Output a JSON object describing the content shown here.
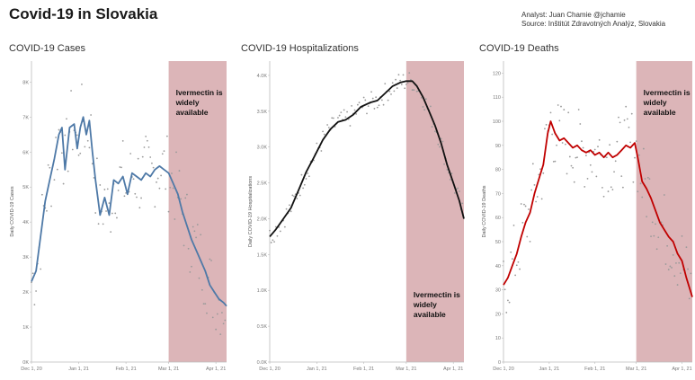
{
  "title": "Covid-19 in Slovakia",
  "credits": {
    "analyst": "Analyst: Juan Chamie @jchamie",
    "source": "Source: Inštitút Zdravotných Analýz, Slovakia"
  },
  "colors": {
    "cases": "#4e79a7",
    "hospitalizations": "#111111",
    "deaths": "#c00000",
    "highlight": "#dcb5b8",
    "points": "#9a9a9a"
  },
  "chart_data": [
    {
      "type": "line",
      "title": "COVID-19 Cases",
      "ylabel": "Daily COVID-19 Cases ",
      "ylim": [
        0,
        8600
      ],
      "y_ticks": [
        0,
        1000,
        2000,
        3000,
        4000,
        5000,
        6000,
        7000,
        8000
      ],
      "y_tick_labels": [
        "0K",
        "1K",
        "2K",
        "3K",
        "4K",
        "5K",
        "6K",
        "7K",
        "8K"
      ],
      "xlim": [
        "2020-12-01",
        "2021-04-08"
      ],
      "x_ticks": [
        "2020-12-01",
        "2021-01-01",
        "2021-02-01",
        "2021-03-01",
        "2021-04-01"
      ],
      "x_tick_labels": [
        "Dec 1, 20",
        "Jan 1, 21",
        "Feb 1, 21",
        "Mar 1, 21",
        "Apr 1, 21"
      ],
      "highlight": {
        "from": "2021-03-01",
        "to": "2021-04-08",
        "label": [
          "Ivermectin is",
          "widely",
          "available"
        ],
        "label_position": "top"
      },
      "series": [
        {
          "values": [
            [
              "2020-12-01",
              2300
            ],
            [
              "2020-12-04",
              2600
            ],
            [
              "2020-12-07",
              3600
            ],
            [
              "2020-12-10",
              4600
            ],
            [
              "2020-12-13",
              5200
            ],
            [
              "2020-12-16",
              5800
            ],
            [
              "2020-12-19",
              6500
            ],
            [
              "2020-12-21",
              6700
            ],
            [
              "2020-12-23",
              5500
            ],
            [
              "2020-12-26",
              6700
            ],
            [
              "2020-12-29",
              6800
            ],
            [
              "2020-12-31",
              6100
            ],
            [
              "2021-01-02",
              6700
            ],
            [
              "2021-01-04",
              7000
            ],
            [
              "2021-01-06",
              6500
            ],
            [
              "2021-01-08",
              6900
            ],
            [
              "2021-01-10",
              6000
            ],
            [
              "2021-01-12",
              5200
            ],
            [
              "2021-01-15",
              4200
            ],
            [
              "2021-01-18",
              4700
            ],
            [
              "2021-01-21",
              4200
            ],
            [
              "2021-01-24",
              5200
            ],
            [
              "2021-01-27",
              5100
            ],
            [
              "2021-01-30",
              5300
            ],
            [
              "2021-02-02",
              4800
            ],
            [
              "2021-02-05",
              5400
            ],
            [
              "2021-02-08",
              5300
            ],
            [
              "2021-02-11",
              5200
            ],
            [
              "2021-02-14",
              5400
            ],
            [
              "2021-02-17",
              5300
            ],
            [
              "2021-02-20",
              5500
            ],
            [
              "2021-02-23",
              5600
            ],
            [
              "2021-02-26",
              5500
            ],
            [
              "2021-03-01",
              5400
            ],
            [
              "2021-03-04",
              5100
            ],
            [
              "2021-03-07",
              4800
            ],
            [
              "2021-03-10",
              4300
            ],
            [
              "2021-03-13",
              3900
            ],
            [
              "2021-03-16",
              3500
            ],
            [
              "2021-03-19",
              3200
            ],
            [
              "2021-03-22",
              2900
            ],
            [
              "2021-03-25",
              2600
            ],
            [
              "2021-03-28",
              2200
            ],
            [
              "2021-03-31",
              2000
            ],
            [
              "2021-04-03",
              1800
            ],
            [
              "2021-04-06",
              1700
            ],
            [
              "2021-04-08",
              1600
            ]
          ]
        }
      ]
    },
    {
      "type": "line",
      "title": "COVID-19 Hospitalizations",
      "ylabel": "Daily COVID-19 Hospitalizations ",
      "ylim": [
        0,
        4200
      ],
      "y_ticks": [
        0,
        500,
        1000,
        1500,
        2000,
        2500,
        3000,
        3500,
        4000
      ],
      "y_tick_labels": [
        "0.0K",
        "0.5K",
        "1.0K",
        "1.5K",
        "2.0K",
        "2.5K",
        "3.0K",
        "3.5K",
        "4.0K"
      ],
      "xlim": [
        "2020-12-01",
        "2021-04-08"
      ],
      "x_ticks": [
        "2020-12-01",
        "2021-01-01",
        "2021-02-01",
        "2021-03-01",
        "2021-04-01"
      ],
      "x_tick_labels": [
        "Dec 1, 20",
        "Jan 1, 21",
        "Feb 1, 21",
        "Mar 1, 21",
        "Apr 1, 21"
      ],
      "highlight": {
        "from": "2021-03-01",
        "to": "2021-04-08",
        "label": [
          "Ivermectin is",
          "widely",
          "available"
        ],
        "label_position": "bottom"
      },
      "series": [
        {
          "values": [
            [
              "2020-12-01",
              1750
            ],
            [
              "2020-12-05",
              1850
            ],
            [
              "2020-12-10",
              2000
            ],
            [
              "2020-12-15",
              2150
            ],
            [
              "2020-12-20",
              2400
            ],
            [
              "2020-12-25",
              2650
            ],
            [
              "2020-12-30",
              2850
            ],
            [
              "2021-01-05",
              3100
            ],
            [
              "2021-01-10",
              3250
            ],
            [
              "2021-01-15",
              3350
            ],
            [
              "2021-01-20",
              3380
            ],
            [
              "2021-01-25",
              3450
            ],
            [
              "2021-01-30",
              3560
            ],
            [
              "2021-02-05",
              3620
            ],
            [
              "2021-02-10",
              3650
            ],
            [
              "2021-02-15",
              3750
            ],
            [
              "2021-02-20",
              3850
            ],
            [
              "2021-02-25",
              3900
            ],
            [
              "2021-03-01",
              3920
            ],
            [
              "2021-03-05",
              3920
            ],
            [
              "2021-03-08",
              3850
            ],
            [
              "2021-03-12",
              3700
            ],
            [
              "2021-03-16",
              3500
            ],
            [
              "2021-03-20",
              3300
            ],
            [
              "2021-03-24",
              3050
            ],
            [
              "2021-03-28",
              2750
            ],
            [
              "2021-04-01",
              2500
            ],
            [
              "2021-04-05",
              2250
            ],
            [
              "2021-04-08",
              2000
            ]
          ]
        }
      ]
    },
    {
      "type": "line",
      "title": "COVID-19 Deaths",
      "ylabel": "Daily COVID-19 Deaths",
      "ylim": [
        0,
        125
      ],
      "y_ticks": [
        0,
        10,
        20,
        30,
        40,
        50,
        60,
        70,
        80,
        90,
        100,
        110,
        120
      ],
      "y_tick_labels": [
        "0",
        "10",
        "20",
        "30",
        "40",
        "50",
        "60",
        "70",
        "80",
        "90",
        "100",
        "110",
        "120"
      ],
      "xlim": [
        "2020-12-01",
        "2021-04-08"
      ],
      "x_ticks": [
        "2020-12-01",
        "2021-01-01",
        "2021-02-01",
        "2021-03-01",
        "2021-04-01"
      ],
      "x_tick_labels": [
        "Dec 1, 20",
        "Jan 1, 21",
        "Feb 1, 21",
        "Mar 1, 21",
        "Apr 1, 21"
      ],
      "highlight": {
        "from": "2021-03-01",
        "to": "2021-04-08",
        "label": [
          "Ivermectin is",
          "widely",
          "available"
        ],
        "label_position": "top"
      },
      "series": [
        {
          "values": [
            [
              "2020-12-01",
              32
            ],
            [
              "2020-12-04",
              35
            ],
            [
              "2020-12-07",
              40
            ],
            [
              "2020-12-10",
              45
            ],
            [
              "2020-12-13",
              52
            ],
            [
              "2020-12-16",
              58
            ],
            [
              "2020-12-19",
              62
            ],
            [
              "2020-12-22",
              70
            ],
            [
              "2020-12-25",
              76
            ],
            [
              "2020-12-28",
              82
            ],
            [
              "2020-12-31",
              95
            ],
            [
              "2021-01-02",
              100
            ],
            [
              "2021-01-05",
              95
            ],
            [
              "2021-01-08",
              92
            ],
            [
              "2021-01-11",
              93
            ],
            [
              "2021-01-14",
              91
            ],
            [
              "2021-01-17",
              89
            ],
            [
              "2021-01-20",
              90
            ],
            [
              "2021-01-23",
              88
            ],
            [
              "2021-01-26",
              87
            ],
            [
              "2021-01-29",
              88
            ],
            [
              "2021-02-01",
              86
            ],
            [
              "2021-02-04",
              87
            ],
            [
              "2021-02-07",
              85
            ],
            [
              "2021-02-10",
              87
            ],
            [
              "2021-02-13",
              85
            ],
            [
              "2021-02-16",
              86
            ],
            [
              "2021-02-19",
              88
            ],
            [
              "2021-02-22",
              90
            ],
            [
              "2021-02-25",
              89
            ],
            [
              "2021-02-28",
              91
            ],
            [
              "2021-03-02",
              85
            ],
            [
              "2021-03-05",
              75
            ],
            [
              "2021-03-08",
              72
            ],
            [
              "2021-03-11",
              68
            ],
            [
              "2021-03-14",
              63
            ],
            [
              "2021-03-17",
              58
            ],
            [
              "2021-03-20",
              55
            ],
            [
              "2021-03-23",
              52
            ],
            [
              "2021-03-26",
              50
            ],
            [
              "2021-03-29",
              45
            ],
            [
              "2021-04-01",
              42
            ],
            [
              "2021-04-04",
              35
            ],
            [
              "2021-04-08",
              27
            ]
          ]
        }
      ]
    }
  ]
}
